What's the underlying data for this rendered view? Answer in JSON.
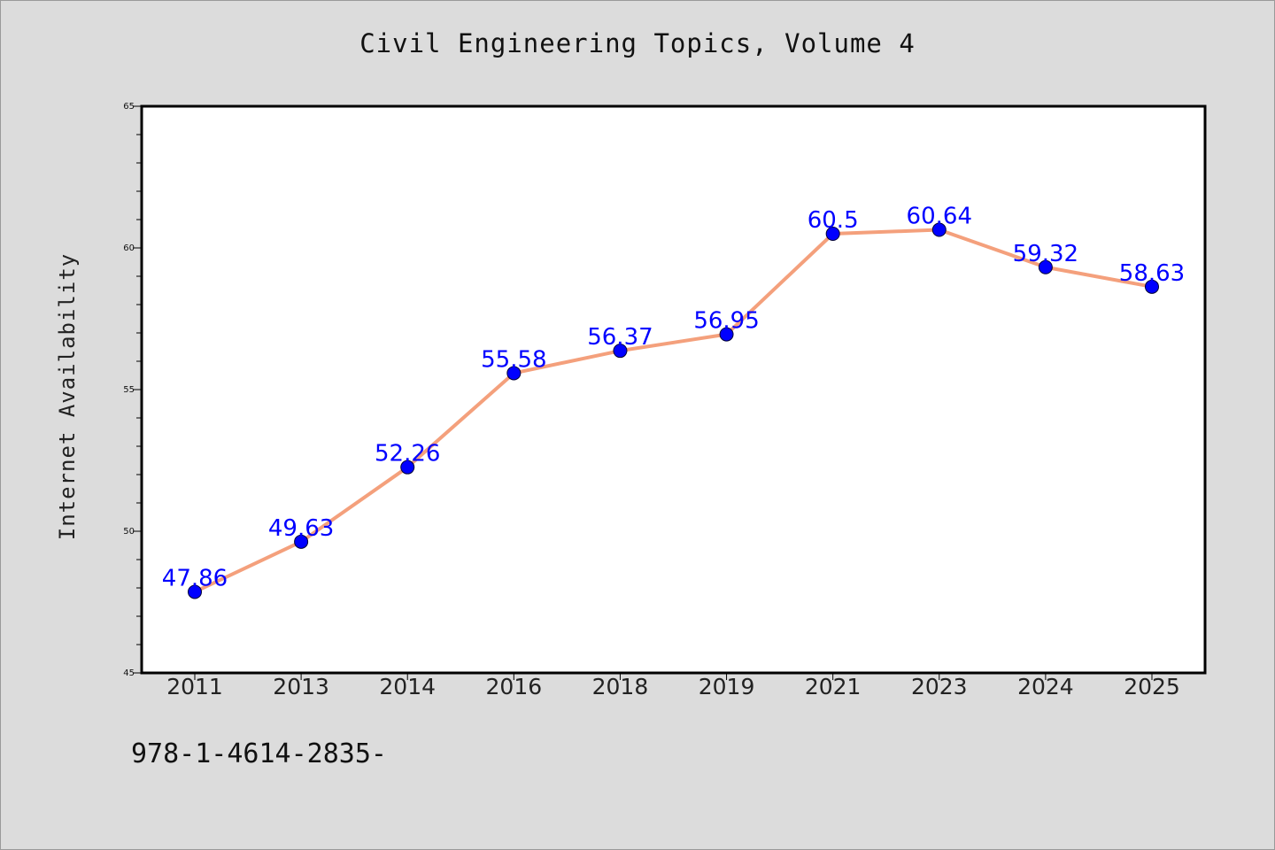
{
  "page": {
    "footnote": "978-1-4614-2835-"
  },
  "colors": {
    "background": "#dcdcdc",
    "plot_background": "#ffffff",
    "line": "#f4a07c",
    "marker": "#0000ff",
    "data_label": "#0000ff"
  },
  "chart_data": {
    "type": "line",
    "title": "Civil Engineering Topics, Volume 4",
    "xlabel": "",
    "ylabel": "Internet Availability",
    "categories": [
      "2011",
      "2013",
      "2014",
      "2016",
      "2018",
      "2019",
      "2021",
      "2023",
      "2024",
      "2025"
    ],
    "series": [
      {
        "values": [
          47.86,
          49.63,
          52.26,
          55.58,
          56.37,
          56.95,
          60.5,
          60.64,
          59.32,
          58.63
        ]
      }
    ],
    "ylim": [
      45,
      65
    ],
    "yticks": [
      45,
      50,
      55,
      60,
      65
    ],
    "minor_yticks_per_major": 5,
    "data_labels": true,
    "grid": false,
    "legend": "none"
  }
}
